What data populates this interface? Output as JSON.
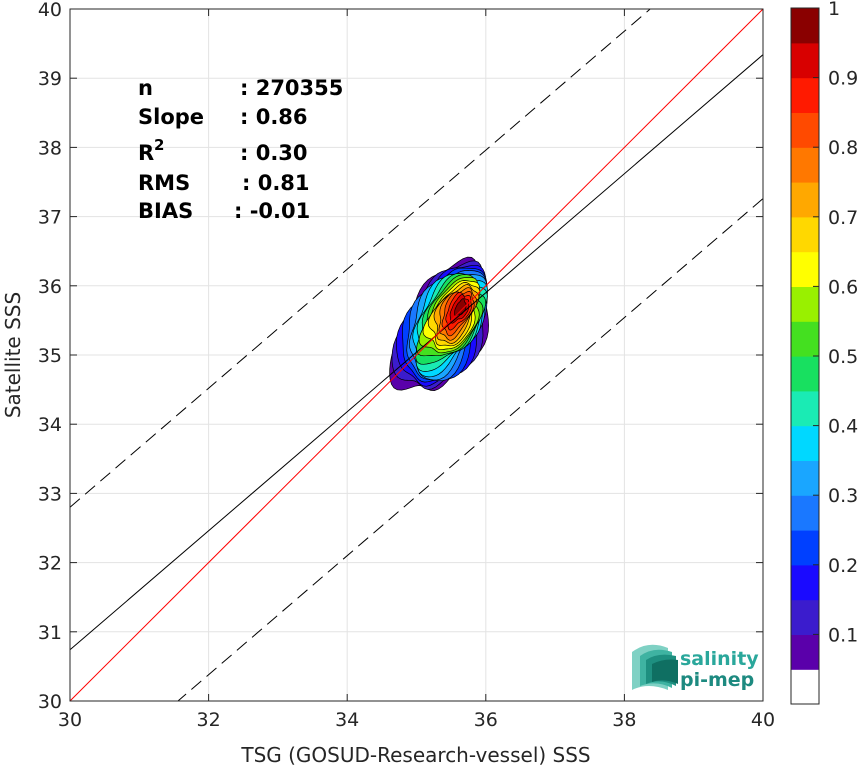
{
  "chart_data": {
    "type": "heatmap",
    "subtype": "density-contour scatter comparison",
    "xlabel": "TSG (GOSUD-Research-vessel) SSS",
    "ylabel": "Satellite SSS",
    "xlim": [
      30,
      40
    ],
    "ylim": [
      30,
      40
    ],
    "xticks": [
      "30",
      "32",
      "34",
      "36",
      "38",
      "40"
    ],
    "yticks": [
      "30",
      "31",
      "32",
      "33",
      "34",
      "35",
      "36",
      "37",
      "38",
      "39",
      "40"
    ],
    "grid": true,
    "stats": [
      {
        "label": "n",
        "value": ": 270355"
      },
      {
        "label": "Slope",
        "value": ": 0.86"
      },
      {
        "label": "R",
        "sup": "2",
        "value": ": 0.30"
      },
      {
        "label": "RMS",
        "value": ": 0.81"
      },
      {
        "label": "BIAS",
        "value": ": -0.01"
      }
    ],
    "lines": {
      "identity": {
        "slope": 1,
        "intercept": 0,
        "color": "#ff0000"
      },
      "regression": {
        "slope": 0.86,
        "intercept": 4.94,
        "color": "#000000"
      },
      "upper_bound": {
        "slope": 0.86,
        "intercept": 7.0,
        "dashed": true
      },
      "lower_bound": {
        "slope": 0.86,
        "intercept": 2.86,
        "dashed": true
      }
    },
    "density_levels": [
      0.05,
      0.1,
      0.15,
      0.2,
      0.25,
      0.3,
      0.35,
      0.4,
      0.45,
      0.5,
      0.55,
      0.6,
      0.65,
      0.7,
      0.75,
      0.8,
      0.85,
      0.9,
      0.95
    ],
    "density_peak": {
      "x": 35.65,
      "y": 35.7
    },
    "colorbar": {
      "ticks": [
        "0.1",
        "0.2",
        "0.3",
        "0.4",
        "0.5",
        "0.6",
        "0.7",
        "0.8",
        "0.9",
        "1"
      ],
      "range": [
        0,
        1
      ],
      "colors": [
        "#ffffff",
        "#5a00aa",
        "#3b1ccd",
        "#1a0aff",
        "#0040ff",
        "#1a78ff",
        "#1aa6ff",
        "#00d8ff",
        "#1aebb4",
        "#18e060",
        "#44e020",
        "#99f000",
        "#ffff00",
        "#ffd800",
        "#ffa800",
        "#ff7800",
        "#ff4a00",
        "#ff1a00",
        "#d80000",
        "#8a0000"
      ]
    }
  },
  "logo": {
    "line1": "salinity",
    "line2": "pi-mep"
  }
}
